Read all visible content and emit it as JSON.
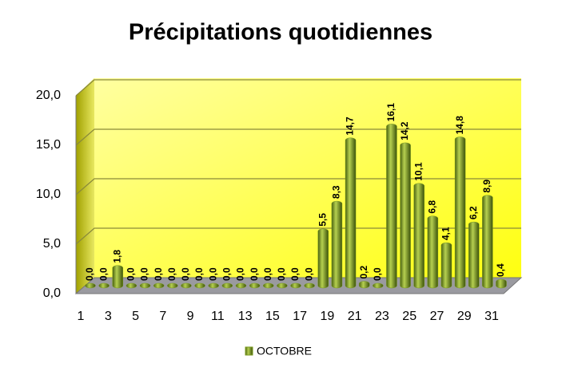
{
  "chart_data": {
    "type": "bar",
    "title": "Précipitations quotidiennes",
    "categories": [
      1,
      null,
      3,
      null,
      5,
      null,
      7,
      null,
      9,
      null,
      11,
      null,
      13,
      null,
      15,
      null,
      17,
      null,
      19,
      null,
      21,
      null,
      23,
      null,
      25,
      null,
      27,
      null,
      29,
      null,
      31
    ],
    "series": [
      {
        "name": "OCTOBRE",
        "color": "#7a9a1e",
        "values": [
          0.0,
          0.0,
          1.8,
          0.0,
          0.0,
          0.0,
          0.0,
          0.0,
          0.0,
          0.0,
          0.0,
          0.0,
          0.0,
          0.0,
          0.0,
          0.0,
          0.0,
          5.5,
          8.3,
          14.7,
          0.2,
          0.0,
          16.1,
          14.2,
          10.1,
          6.8,
          4.1,
          14.8,
          6.2,
          8.9,
          0.4
        ],
        "value_labels": [
          "0,0",
          "0,0",
          "1,8",
          "0,0",
          "0,0",
          "0,0",
          "0,0",
          "0,0",
          "0,0",
          "0,0",
          "0,0",
          "0,0",
          "0,0",
          "0,0",
          "0,0",
          "0,0",
          "0,0",
          "5,5",
          "8,3",
          "14,7",
          "0,2",
          "0,0",
          "16,1",
          "14,2",
          "10,1",
          "6,8",
          "4,1",
          "14,8",
          "6,2",
          "8,9",
          "0,4"
        ]
      }
    ],
    "ylim": [
      0,
      20
    ],
    "yticks": [
      {
        "value": 0,
        "label": "0,0"
      },
      {
        "value": 5,
        "label": "5,0"
      },
      {
        "value": 10,
        "label": "10,0"
      },
      {
        "value": 15,
        "label": "15,0"
      },
      {
        "value": 20,
        "label": "20,0"
      }
    ],
    "grid": true,
    "legend": "bottom"
  }
}
